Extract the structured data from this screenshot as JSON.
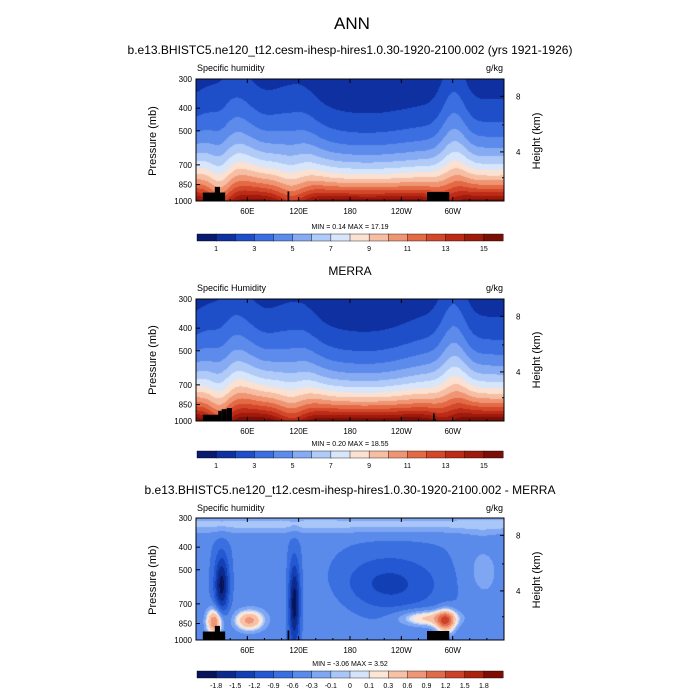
{
  "figure_title": "ANN",
  "chart_data": [
    {
      "type": "heatmap",
      "title": "b.e13.BHISTC5.ne120_t12.cesm-ihesp-hires1.0.30-1920-2100.002 (yrs 1921-1926)",
      "subtitle_left": "Specific humidity",
      "units": "g/kg",
      "ylabel": "Pressure (mb)",
      "ylabel_right": "Height (km)",
      "xticks": [
        "60E",
        "120E",
        "180",
        "120W",
        "60W"
      ],
      "yticks": [
        "300",
        "400",
        "500",
        "700",
        "850",
        "1000"
      ],
      "yticks_right": [
        "8",
        "4"
      ],
      "stats": "MIN =   0.14  MAX =  17.19",
      "min": 0.14,
      "max": 17.19,
      "colorbar_levels": [
        "1",
        "3",
        "5",
        "7",
        "9",
        "11",
        "13",
        "15"
      ],
      "colorbar_colors": [
        "#0a1a6e",
        "#0f30a0",
        "#1e4fc8",
        "#3b6ee0",
        "#5d8bec",
        "#86abf3",
        "#b0cbf8",
        "#d8e6fb",
        "#fbe1d2",
        "#f6bea3",
        "#f09573",
        "#e46a45",
        "#d3472a",
        "#bc2b16",
        "#9e1a0c",
        "#7a0f07"
      ],
      "scheme": "humidity",
      "topo": "model"
    },
    {
      "type": "heatmap",
      "title": "MERRA",
      "subtitle_left": "Specific Humidity",
      "units": "g/kg",
      "ylabel": "Pressure (mb)",
      "ylabel_right": "Height (km)",
      "xticks": [
        "60E",
        "120E",
        "180",
        "120W",
        "60W"
      ],
      "yticks": [
        "300",
        "400",
        "500",
        "700",
        "850",
        "1000"
      ],
      "yticks_right": [
        "8",
        "4"
      ],
      "stats": "MIN =   0.20  MAX =  18.55",
      "min": 0.2,
      "max": 18.55,
      "colorbar_levels": [
        "1",
        "3",
        "5",
        "7",
        "9",
        "11",
        "13",
        "15"
      ],
      "colorbar_colors": [
        "#0a1a6e",
        "#0f30a0",
        "#1e4fc8",
        "#3b6ee0",
        "#5d8bec",
        "#86abf3",
        "#b0cbf8",
        "#d8e6fb",
        "#fbe1d2",
        "#f6bea3",
        "#f09573",
        "#e46a45",
        "#d3472a",
        "#bc2b16",
        "#9e1a0c",
        "#7a0f07"
      ],
      "scheme": "humidity",
      "topo": "merra"
    },
    {
      "type": "heatmap",
      "title": "b.e13.BHISTC5.ne120_t12.cesm-ihesp-hires1.0.30-1920-2100.002 - MERRA",
      "subtitle_left": "Specific humidity",
      "units": "g/kg",
      "ylabel": "Pressure (mb)",
      "ylabel_right": "Height (km)",
      "xticks": [
        "60E",
        "120E",
        "180",
        "120W",
        "60W"
      ],
      "yticks": [
        "300",
        "400",
        "500",
        "700",
        "850",
        "1000"
      ],
      "yticks_right": [
        "8",
        "4"
      ],
      "stats": "MIN =  -3.06  MAX =   3.52",
      "min": -3.06,
      "max": 3.52,
      "colorbar_levels": [
        "-1.8",
        "-1.5",
        "-1.2",
        "-0.9",
        "-0.6",
        "-0.3",
        "-0.1",
        "0",
        "0.1",
        "0.3",
        "0.6",
        "0.9",
        "1.2",
        "1.5",
        "1.8"
      ],
      "colorbar_colors": [
        "#08145a",
        "#0c2a8c",
        "#1240b4",
        "#2457d2",
        "#3a6fe0",
        "#5a8aea",
        "#7ea6f2",
        "#a9c6f8",
        "#d6e4fb",
        "#fde6d6",
        "#f7c1a6",
        "#ee9677",
        "#e06b4b",
        "#cb4228",
        "#a9230f",
        "#7e0d05"
      ],
      "scheme": "diff",
      "topo": "model"
    }
  ]
}
